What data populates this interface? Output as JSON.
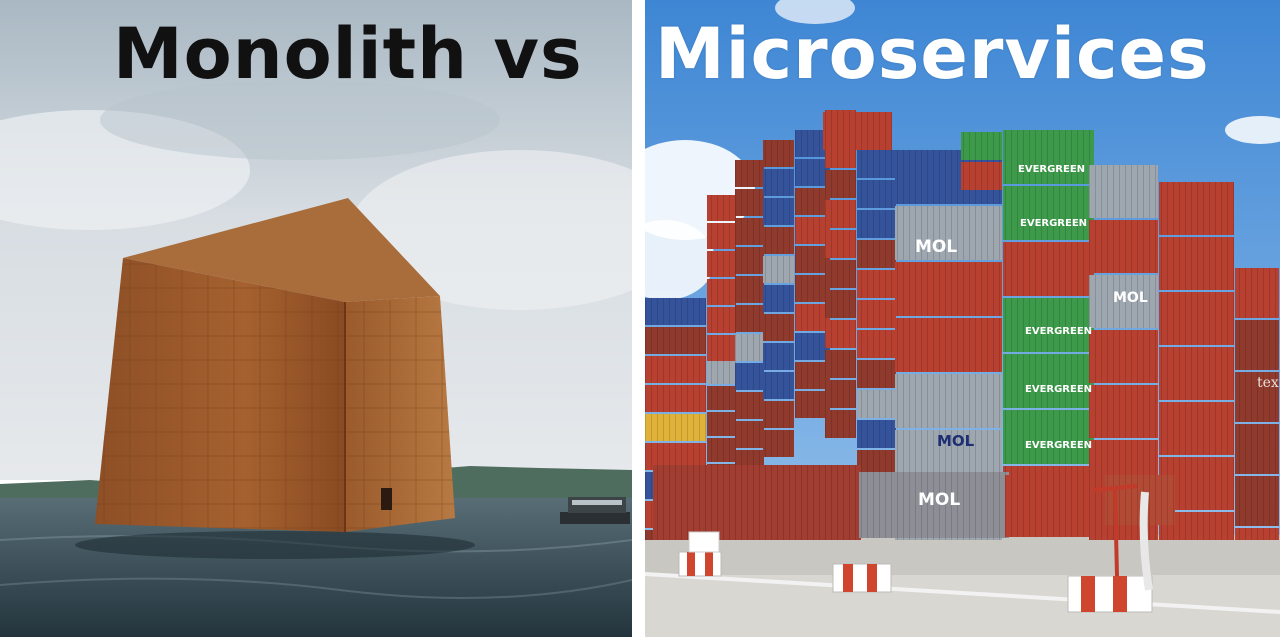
{
  "left_panel": {
    "title": "Monolith vs",
    "colors": {
      "sky": "#c9d2d8",
      "rust": "#9c5a2c",
      "water": "#3a4d55"
    }
  },
  "right_panel": {
    "title": "Microservices",
    "container_marks": [
      "EVERGREEN",
      "MOL",
      "tex"
    ],
    "colors": {
      "sky": "#4f97dd",
      "red": "#b84030",
      "green": "#3d9a4a",
      "gray": "#9ea7af",
      "blue": "#35539a"
    }
  }
}
